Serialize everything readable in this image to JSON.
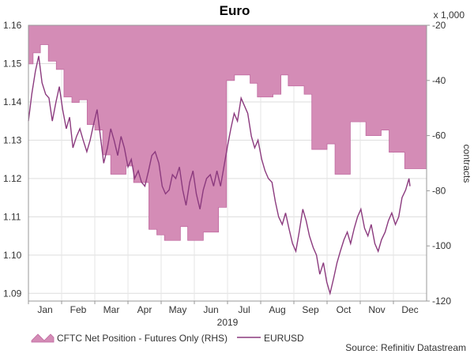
{
  "chart_data": {
    "type": "area+line",
    "title": "Euro",
    "year_label": "2019",
    "months": [
      "Jan",
      "Feb",
      "Mar",
      "Apr",
      "May",
      "Jun",
      "Jul",
      "Aug",
      "Sep",
      "Oct",
      "Nov",
      "Dec"
    ],
    "left_axis": {
      "ticks": [
        "1.16",
        "1.15",
        "1.14",
        "1.13",
        "1.12",
        "1.11",
        "1.10",
        "1.09"
      ],
      "range": [
        1.088,
        1.16
      ]
    },
    "right_axis": {
      "unit": "x 1,000",
      "label": "contracts",
      "ticks": [
        "-20",
        "-40",
        "-60",
        "-80",
        "-100",
        "-120"
      ],
      "range": [
        -120,
        -20
      ]
    },
    "legend": [
      {
        "label": "CFTC Net Position - Futures Only (RHS)",
        "color": "#cc6ea6"
      },
      {
        "label": "EURUSD",
        "color": "#8b3a7e"
      }
    ],
    "source": "Source: Refinitiv Datastream",
    "series": [
      {
        "name": "CFTC Net Position - Futures Only (RHS)",
        "axis": "right",
        "x": [
          0,
          0.14,
          0.36,
          0.6,
          0.84,
          1.07,
          1.31,
          1.53,
          1.77,
          2.0,
          2.24,
          2.48,
          2.7,
          2.94,
          3.17,
          3.41,
          3.63,
          3.87,
          4.1,
          4.34,
          4.58,
          4.8,
          5.04,
          5.27,
          5.51,
          5.73,
          5.97,
          6.21,
          6.44,
          6.68,
          6.9,
          7.14,
          7.37,
          7.61,
          7.83,
          8.07,
          8.31,
          8.54,
          8.77,
          9.0,
          9.24,
          9.48,
          9.7,
          9.94,
          10.17,
          10.41,
          10.63,
          10.87,
          11.11,
          11.34,
          11.5
        ],
        "values": [
          -34,
          -30,
          -27,
          -33,
          -36,
          -46,
          -48,
          -47,
          -56,
          -58,
          -67,
          -74,
          -74,
          -71,
          -77,
          -77,
          -94,
          -96,
          -98,
          -98,
          -93,
          -98,
          -98,
          -95,
          -95,
          -86,
          -40,
          -38,
          -38,
          -41,
          -46,
          -46,
          -45,
          -38,
          -42,
          -42,
          -45,
          -65,
          -65,
          -63,
          -74,
          -74,
          -55,
          -55,
          -60,
          -60,
          -58,
          -66,
          -66,
          -72,
          -72
        ]
      },
      {
        "name": "EURUSD",
        "axis": "left",
        "x": [
          0,
          0.1,
          0.21,
          0.31,
          0.41,
          0.52,
          0.62,
          0.72,
          0.83,
          0.93,
          1.03,
          1.14,
          1.24,
          1.34,
          1.45,
          1.55,
          1.65,
          1.76,
          1.86,
          1.96,
          2.07,
          2.17,
          2.27,
          2.38,
          2.48,
          2.58,
          2.69,
          2.79,
          2.89,
          3.0,
          3.1,
          3.2,
          3.31,
          3.41,
          3.51,
          3.62,
          3.72,
          3.82,
          3.93,
          4.03,
          4.13,
          4.24,
          4.34,
          4.44,
          4.55,
          4.65,
          4.75,
          4.86,
          4.96,
          5.06,
          5.17,
          5.27,
          5.37,
          5.48,
          5.58,
          5.68,
          5.79,
          5.89,
          5.99,
          6.1,
          6.2,
          6.3,
          6.41,
          6.51,
          6.61,
          6.72,
          6.82,
          6.92,
          7.03,
          7.13,
          7.23,
          7.34,
          7.44,
          7.54,
          7.65,
          7.75,
          7.85,
          7.96,
          8.06,
          8.16,
          8.27,
          8.37,
          8.47,
          8.58,
          8.68,
          8.78,
          8.89,
          8.99,
          9.09,
          9.2,
          9.3,
          9.4,
          9.51,
          9.61,
          9.71,
          9.82,
          9.92,
          10.02,
          10.13,
          10.23,
          10.33,
          10.44,
          10.54,
          10.64,
          10.75,
          10.85,
          10.95,
          11.06,
          11.16,
          11.26,
          11.37,
          11.47,
          11.5
        ],
        "values": [
          1.135,
          1.142,
          1.148,
          1.152,
          1.145,
          1.142,
          1.141,
          1.135,
          1.14,
          1.144,
          1.138,
          1.133,
          1.136,
          1.128,
          1.131,
          1.133,
          1.13,
          1.127,
          1.13,
          1.134,
          1.138,
          1.131,
          1.124,
          1.128,
          1.133,
          1.13,
          1.126,
          1.131,
          1.128,
          1.123,
          1.125,
          1.12,
          1.122,
          1.119,
          1.118,
          1.122,
          1.126,
          1.127,
          1.124,
          1.118,
          1.116,
          1.117,
          1.121,
          1.12,
          1.123,
          1.117,
          1.113,
          1.119,
          1.122,
          1.116,
          1.112,
          1.117,
          1.12,
          1.121,
          1.118,
          1.122,
          1.118,
          1.123,
          1.128,
          1.133,
          1.137,
          1.135,
          1.141,
          1.139,
          1.137,
          1.131,
          1.128,
          1.13,
          1.125,
          1.122,
          1.12,
          1.119,
          1.114,
          1.11,
          1.108,
          1.111,
          1.107,
          1.103,
          1.101,
          1.106,
          1.112,
          1.109,
          1.105,
          1.102,
          1.1,
          1.095,
          1.098,
          1.093,
          1.09,
          1.094,
          1.098,
          1.101,
          1.104,
          1.106,
          1.103,
          1.107,
          1.11,
          1.112,
          1.107,
          1.105,
          1.108,
          1.103,
          1.101,
          1.104,
          1.106,
          1.109,
          1.111,
          1.108,
          1.11,
          1.115,
          1.117,
          1.12,
          1.118
        ]
      }
    ]
  }
}
